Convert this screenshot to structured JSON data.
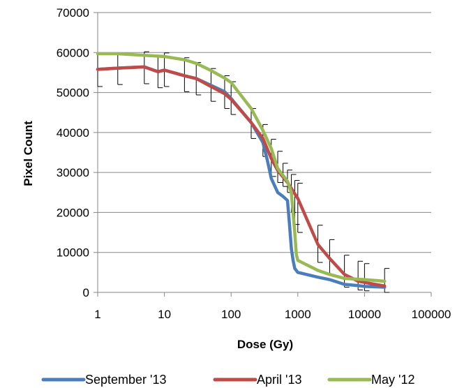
{
  "chart_data": {
    "type": "line",
    "title": "",
    "xlabel": "Dose (Gy)",
    "ylabel": "Pixel Count",
    "xscale": "log",
    "xlim": [
      1,
      100000
    ],
    "ylim": [
      0,
      70000
    ],
    "x_ticks": [
      1,
      10,
      100,
      1000,
      10000,
      100000
    ],
    "x_tick_labels": [
      "1",
      "10",
      "100",
      "1000",
      "10000",
      "100000"
    ],
    "y_ticks": [
      0,
      10000,
      20000,
      30000,
      40000,
      50000,
      60000,
      70000
    ],
    "y_tick_labels": [
      "0",
      "10000",
      "20000",
      "30000",
      "40000",
      "50000",
      "60000",
      "70000"
    ],
    "grid": "horizontal",
    "legend_position": "bottom",
    "series": [
      {
        "name": "September '13",
        "color": "#4a7ebb",
        "points": [
          [
            1,
            55800
          ],
          [
            2,
            56100
          ],
          [
            5,
            56400
          ],
          [
            8,
            55200
          ],
          [
            10,
            55600
          ],
          [
            20,
            54200
          ],
          [
            30,
            53500
          ],
          [
            50,
            51800
          ],
          [
            80,
            50200
          ],
          [
            100,
            48500
          ],
          [
            200,
            42500
          ],
          [
            300,
            37500
          ],
          [
            350,
            33000
          ],
          [
            400,
            28500
          ],
          [
            500,
            25000
          ],
          [
            600,
            24000
          ],
          [
            700,
            23000
          ],
          [
            750,
            17000
          ],
          [
            800,
            11000
          ],
          [
            850,
            8000
          ],
          [
            900,
            6000
          ],
          [
            1000,
            5000
          ],
          [
            2000,
            3800
          ],
          [
            3000,
            3200
          ],
          [
            5000,
            2000
          ],
          [
            8000,
            1700
          ],
          [
            10000,
            1500
          ],
          [
            20000,
            1300
          ]
        ]
      },
      {
        "name": "April '13",
        "color": "#be4b48",
        "points": [
          [
            1,
            55800
          ],
          [
            2,
            56100
          ],
          [
            5,
            56400
          ],
          [
            8,
            55200
          ],
          [
            10,
            55600
          ],
          [
            20,
            54200
          ],
          [
            30,
            53500
          ],
          [
            50,
            51500
          ],
          [
            80,
            49700
          ],
          [
            100,
            48300
          ],
          [
            200,
            42500
          ],
          [
            300,
            38500
          ],
          [
            400,
            33500
          ],
          [
            500,
            30500
          ],
          [
            700,
            27500
          ],
          [
            1000,
            23500
          ],
          [
            2000,
            12000
          ],
          [
            3000,
            8500
          ],
          [
            5000,
            4500
          ],
          [
            8000,
            2800
          ],
          [
            10000,
            2500
          ],
          [
            20000,
            1600
          ]
        ]
      },
      {
        "name": "May '12",
        "color": "#98b954",
        "points": [
          [
            1,
            59700
          ],
          [
            2,
            59700
          ],
          [
            5,
            59300
          ],
          [
            10,
            59000
          ],
          [
            20,
            58200
          ],
          [
            30,
            57300
          ],
          [
            50,
            55500
          ],
          [
            80,
            53600
          ],
          [
            100,
            52500
          ],
          [
            200,
            46000
          ],
          [
            300,
            40500
          ],
          [
            400,
            36000
          ],
          [
            500,
            31000
          ],
          [
            700,
            27800
          ],
          [
            800,
            25000
          ],
          [
            900,
            15000
          ],
          [
            950,
            9500
          ],
          [
            1000,
            8000
          ],
          [
            2000,
            5500
          ],
          [
            3000,
            4500
          ],
          [
            5000,
            3500
          ],
          [
            10000,
            3200
          ],
          [
            20000,
            2800
          ]
        ]
      }
    ],
    "error_bars": [
      {
        "x": 1,
        "low": 51500,
        "high": 59700
      },
      {
        "x": 2,
        "low": 52000,
        "high": 59900
      },
      {
        "x": 5,
        "low": 52200,
        "high": 60200
      },
      {
        "x": 8,
        "low": 51200,
        "high": 59200
      },
      {
        "x": 10,
        "low": 51500,
        "high": 59900
      },
      {
        "x": 20,
        "low": 50200,
        "high": 58700
      },
      {
        "x": 30,
        "low": 49400,
        "high": 57500
      },
      {
        "x": 50,
        "low": 47800,
        "high": 56000
      },
      {
        "x": 80,
        "low": 46000,
        "high": 54200
      },
      {
        "x": 100,
        "low": 44500,
        "high": 52700
      },
      {
        "x": 200,
        "low": 38500,
        "high": 46000
      },
      {
        "x": 300,
        "low": 34000,
        "high": 42000
      },
      {
        "x": 400,
        "low": 29000,
        "high": 38300
      },
      {
        "x": 500,
        "low": 27500,
        "high": 35300
      },
      {
        "x": 600,
        "low": 26500,
        "high": 32300
      },
      {
        "x": 700,
        "low": 25000,
        "high": 30600
      },
      {
        "x": 800,
        "low": 20000,
        "high": 29500
      },
      {
        "x": 900,
        "low": 17000,
        "high": 28000
      },
      {
        "x": 1000,
        "low": 15000,
        "high": 27300
      },
      {
        "x": 2000,
        "low": 7500,
        "high": 16800
      },
      {
        "x": 3000,
        "low": 4500,
        "high": 13200
      },
      {
        "x": 5000,
        "low": 1300,
        "high": 9300
      },
      {
        "x": 8000,
        "low": 600,
        "high": 7800
      },
      {
        "x": 10000,
        "low": 400,
        "high": 7200
      },
      {
        "x": 20000,
        "low": 0,
        "high": 6000
      }
    ]
  }
}
